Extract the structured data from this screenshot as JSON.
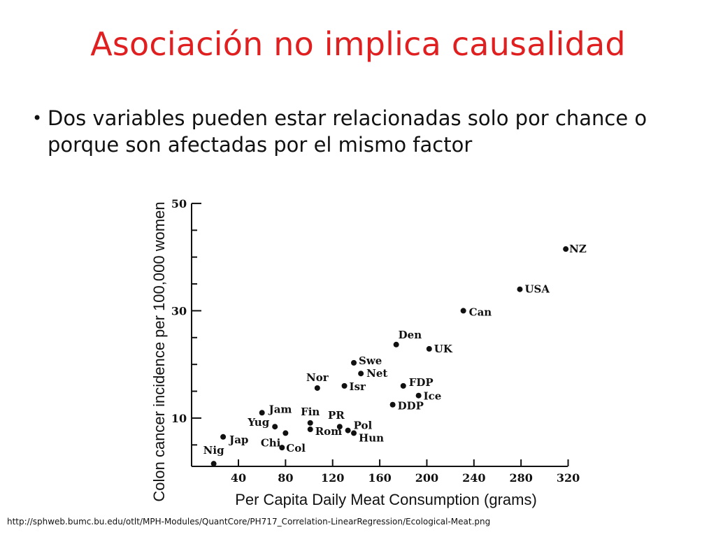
{
  "slide": {
    "title": "Asociación no implica causalidad",
    "bullet_mark": "•",
    "bullet": "Dos variables pueden estar relacionadas solo por chance o porque son afectadas por el mismo factor",
    "source": "http://sphweb.bumc.bu.edu/otlt/MPH-Modules/QuantCore/PH717_Correlation-LinearRegression/Ecological-Meat.png"
  },
  "chart_data": {
    "type": "scatter",
    "title": "",
    "xlabel": "Per Capita Daily Meat Consumption (grams)",
    "ylabel": "Colon cancer incidence per 100,000 women",
    "xlim": [
      20,
      320
    ],
    "ylim": [
      1,
      50
    ],
    "xticks": [
      40,
      80,
      120,
      160,
      200,
      240,
      280,
      320
    ],
    "yticks": [
      10,
      30,
      50
    ],
    "grid": false,
    "points": [
      {
        "label": "NZ",
        "x": 318,
        "y": 41.5
      },
      {
        "label": "USA",
        "x": 279,
        "y": 34.0
      },
      {
        "label": "Can",
        "x": 231,
        "y": 30.0
      },
      {
        "label": "Den",
        "x": 174,
        "y": 23.7
      },
      {
        "label": "UK",
        "x": 202,
        "y": 22.9
      },
      {
        "label": "Swe",
        "x": 138,
        "y": 20.3
      },
      {
        "label": "Net",
        "x": 144,
        "y": 18.3
      },
      {
        "label": "Nor",
        "x": 107,
        "y": 15.6
      },
      {
        "label": "Isr",
        "x": 130,
        "y": 16.0
      },
      {
        "label": "FDP",
        "x": 180,
        "y": 16.0
      },
      {
        "label": "Ice",
        "x": 193,
        "y": 14.2
      },
      {
        "label": "DDP",
        "x": 171,
        "y": 12.5
      },
      {
        "label": "Jam",
        "x": 60,
        "y": 11.0
      },
      {
        "label": "Fin",
        "x": 101,
        "y": 9.1
      },
      {
        "label": "PR",
        "x": 126,
        "y": 8.4
      },
      {
        "label": "Pol",
        "x": 133,
        "y": 7.7
      },
      {
        "label": "Yug",
        "x": 71,
        "y": 8.4
      },
      {
        "label": "Rom",
        "x": 101,
        "y": 7.9
      },
      {
        "label": "Hun",
        "x": 138,
        "y": 7.2
      },
      {
        "label": "Jap",
        "x": 27,
        "y": 6.5
      },
      {
        "label": "Chi",
        "x": 80,
        "y": 7.2
      },
      {
        "label": "Col",
        "x": 77,
        "y": 4.5
      },
      {
        "label": "Nig",
        "x": 19,
        "y": 1.5
      }
    ]
  }
}
